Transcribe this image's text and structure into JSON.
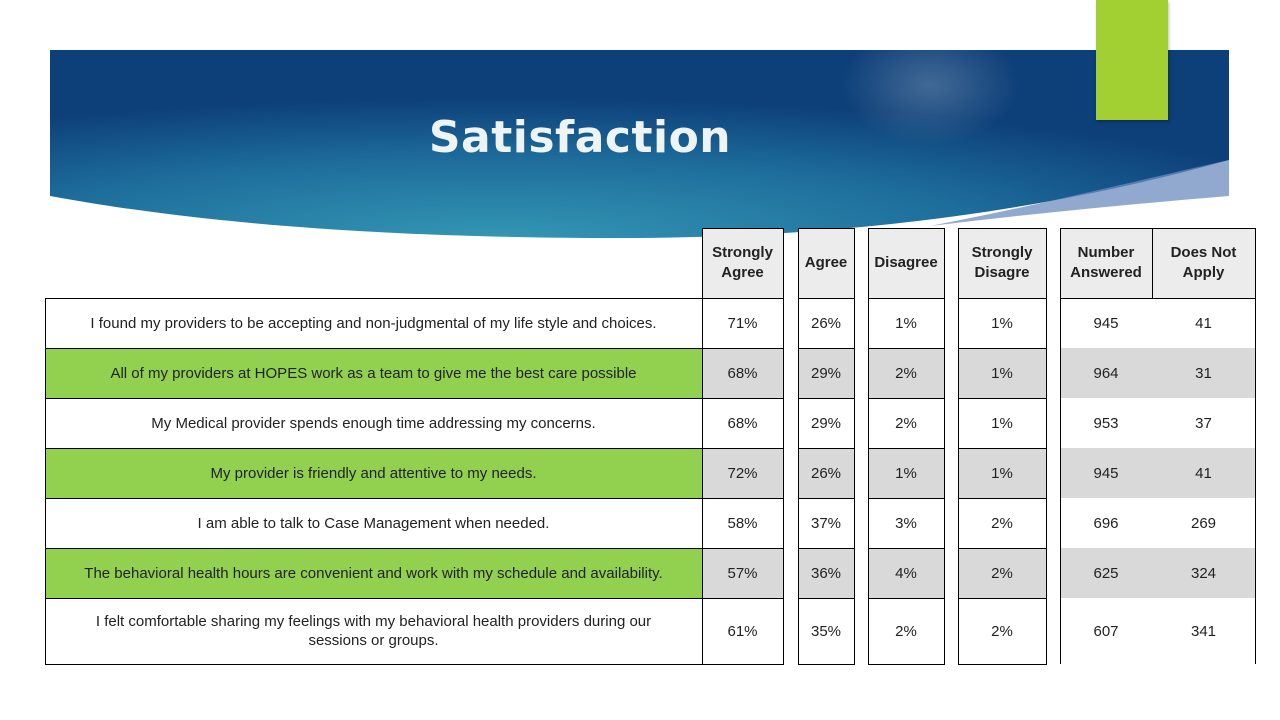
{
  "title": "Satisfaction",
  "colors": {
    "accent_green": "#a2cf32",
    "row_highlight": "#92d050",
    "banner_dark": "#0d3f78",
    "banner_light": "#2e8fae"
  },
  "table": {
    "columns": [
      "Strongly Agree",
      "Agree",
      "Disagree",
      "Strongly Disagre",
      "Number Answered",
      "Does Not Apply"
    ],
    "rows": [
      {
        "question": "I found my providers to be accepting and non-judgmental  of my life style and choices.",
        "values": [
          "71%",
          "26%",
          "1%",
          "1%",
          "945",
          "41"
        ]
      },
      {
        "question": "All of my providers at HOPES work as a team to give me the best care possible",
        "values": [
          "68%",
          "29%",
          "2%",
          "1%",
          "964",
          "31"
        ]
      },
      {
        "question": "My Medical provider spends enough time addressing my concerns.",
        "values": [
          "68%",
          "29%",
          "2%",
          "1%",
          "953",
          "37"
        ]
      },
      {
        "question": "My provider is friendly and attentive to my needs.",
        "values": [
          "72%",
          "26%",
          "1%",
          "1%",
          "945",
          "41"
        ]
      },
      {
        "question": "I am able to talk to Case Management when needed.",
        "values": [
          "58%",
          "37%",
          "3%",
          "2%",
          "696",
          "269"
        ]
      },
      {
        "question": "The behavioral health hours are convenient  and work with my schedule and availability.",
        "values": [
          "57%",
          "36%",
          "4%",
          "2%",
          "625",
          "324"
        ]
      },
      {
        "question": "I felt comfortable sharing my feelings with my behavioral health providers during our sessions or groups.",
        "values": [
          "61%",
          "35%",
          "2%",
          "2%",
          "607",
          "341"
        ]
      }
    ]
  }
}
